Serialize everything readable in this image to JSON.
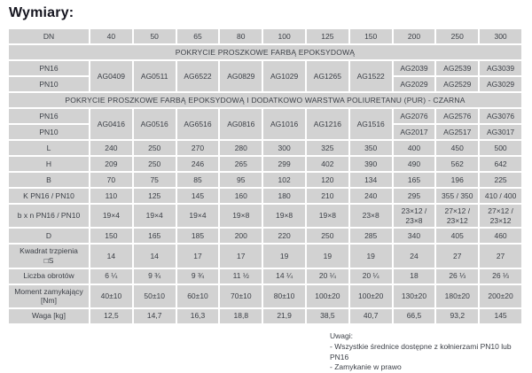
{
  "title": "Wymiary:",
  "table": {
    "header": {
      "dn_label": "DN",
      "dn_values": [
        "40",
        "50",
        "65",
        "80",
        "100",
        "125",
        "150",
        "200",
        "250",
        "300"
      ]
    },
    "section_epoxy": {
      "title": "POKRYCIE PROSZKOWE FARBĄ EPOKSYDOWĄ",
      "pn16_label": "PN16",
      "pn10_label": "PN10",
      "shared_codes": [
        "AG0409",
        "AG0511",
        "AG6522",
        "AG0829",
        "AG1029",
        "AG1265",
        "AG1522"
      ],
      "pn16_codes": [
        "AG2039",
        "AG2539",
        "AG3039"
      ],
      "pn10_codes": [
        "AG2029",
        "AG2529",
        "AG3029"
      ]
    },
    "section_pur": {
      "title": "POKRYCIE PROSZKOWE FARBĄ EPOKSYDOWĄ I DODATKOWO WARSTWA POLIURETANU (PUR) - CZARNA",
      "pn16_label": "PN16",
      "pn10_label": "PN10",
      "shared_codes": [
        "AG0416",
        "AG0516",
        "AG6516",
        "AG0816",
        "AG1016",
        "AG1216",
        "AG1516"
      ],
      "pn16_codes": [
        "AG2076",
        "AG2576",
        "AG3076"
      ],
      "pn10_codes": [
        "AG2017",
        "AG2517",
        "AG3017"
      ]
    },
    "rows": [
      {
        "label": "L",
        "values": [
          "240",
          "250",
          "270",
          "280",
          "300",
          "325",
          "350",
          "400",
          "450",
          "500"
        ]
      },
      {
        "label": "H",
        "values": [
          "209",
          "250",
          "246",
          "265",
          "299",
          "402",
          "390",
          "490",
          "562",
          "642"
        ]
      },
      {
        "label": "B",
        "values": [
          "70",
          "75",
          "85",
          "95",
          "102",
          "120",
          "134",
          "165",
          "196",
          "225"
        ]
      },
      {
        "label": "K PN16 / PN10",
        "values": [
          "110",
          "125",
          "145",
          "160",
          "180",
          "210",
          "240",
          "295",
          "355 / 350",
          "410 / 400"
        ]
      },
      {
        "label": "b x n PN16 / PN10",
        "values": [
          "19×4",
          "19×4",
          "19×4",
          "19×8",
          "19×8",
          "19×8",
          "23×8",
          "23×12 /\n23×8",
          "27×12 /\n23×12",
          "27×12 /\n23×12"
        ]
      },
      {
        "label": "D",
        "values": [
          "150",
          "165",
          "185",
          "200",
          "220",
          "250",
          "285",
          "340",
          "405",
          "460"
        ]
      },
      {
        "label": "Kwadrat trzpienia\n□S",
        "values": [
          "14",
          "14",
          "17",
          "17",
          "19",
          "19",
          "19",
          "24",
          "27",
          "27"
        ]
      },
      {
        "label": "Liczba obrotów",
        "values": [
          "6 ¼",
          "9 ¾",
          "9 ¾",
          "11 ½",
          "14 ¼",
          "20 ¼",
          "20 ¼",
          "18",
          "26 ⅓",
          "26 ⅓"
        ]
      },
      {
        "label": "Moment zamykający\n[Nm]",
        "values": [
          "40±10",
          "50±10",
          "60±10",
          "70±10",
          "80±10",
          "100±20",
          "100±20",
          "130±20",
          "180±20",
          "200±20"
        ]
      },
      {
        "label": "Waga [kg]",
        "values": [
          "12,5",
          "14,7",
          "16,3",
          "18,8",
          "21,9",
          "38,5",
          "40,7",
          "66,5",
          "93,2",
          "145"
        ]
      }
    ]
  },
  "notes": {
    "heading": "Uwagi:",
    "items": [
      "- Wszystkie średnice dostępne z kołnierzami PN10 lub PN16",
      "- Zamykanie w prawo"
    ]
  },
  "colors": {
    "cell_bg": "#d2d2d2",
    "text": "#3b3f46",
    "title_text": "#15151f",
    "page_bg": "#ffffff"
  }
}
